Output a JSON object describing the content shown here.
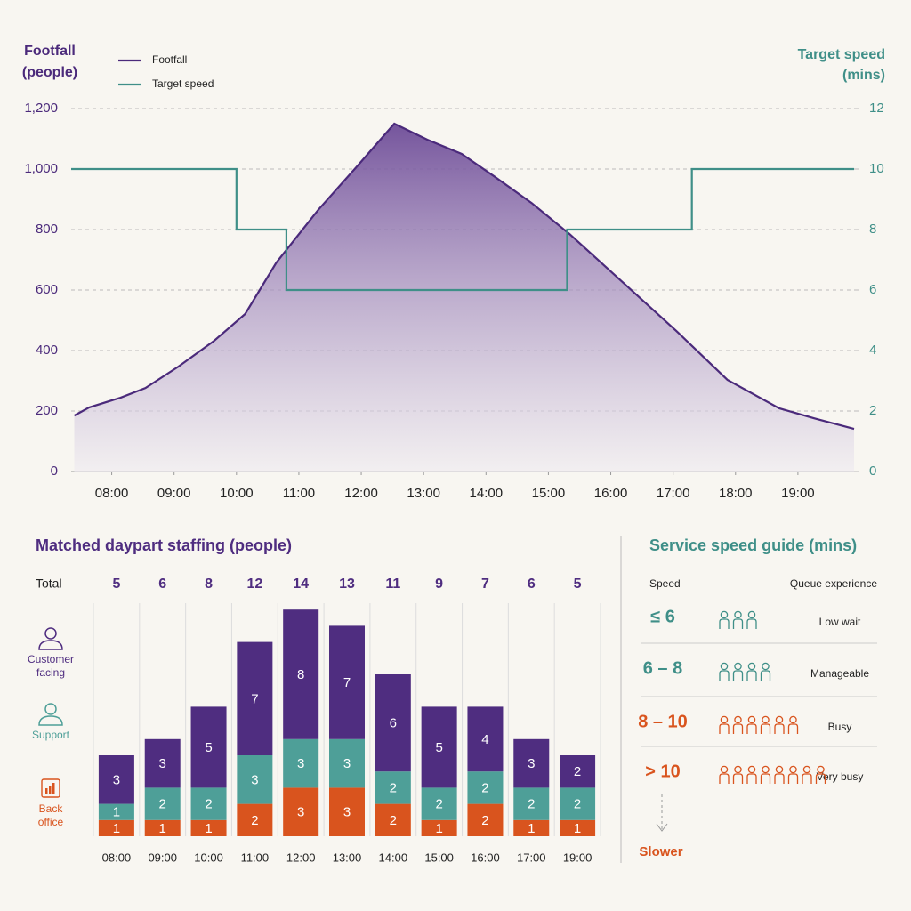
{
  "chart_data": [
    {
      "type": "line",
      "y_label": [
        "Footfall",
        "(people)"
      ],
      "y2_label": [
        "Target speed",
        "(mins)"
      ],
      "xlim": [
        7.35,
        19.9
      ],
      "xticks": [
        {
          "value": 8,
          "label": "08:00"
        },
        {
          "value": 9,
          "label": "09:00"
        },
        {
          "value": 10,
          "label": "10:00"
        },
        {
          "value": 11,
          "label": "11:00"
        },
        {
          "value": 12,
          "label": "12:00"
        },
        {
          "value": 13,
          "label": "13:00"
        },
        {
          "value": 14,
          "label": "14:00"
        },
        {
          "value": 15,
          "label": "15:00"
        },
        {
          "value": 16,
          "label": "16:00"
        },
        {
          "value": 17,
          "label": "17:00"
        },
        {
          "value": 18,
          "label": "18:00"
        },
        {
          "value": 19,
          "label": "19:00"
        }
      ],
      "ylim": [
        0,
        1200
      ],
      "yticks": [
        0,
        200,
        400,
        600,
        800,
        {
          "value": 1000,
          "label": "1,000"
        },
        {
          "value": 1200,
          "label": "1,200"
        }
      ],
      "y2lim": [
        0,
        12
      ],
      "y2ticks": [
        0,
        2,
        4,
        6,
        8,
        10,
        12
      ],
      "grid": true,
      "legend": "top-left",
      "series": [
        {
          "name": "Footfall",
          "color": "#4b2a7b",
          "fill": "gradient",
          "x": [
            7.4,
            7.64,
            8.14,
            8.54,
            9.07,
            9.64,
            10.14,
            10.64,
            11.31,
            11.92,
            12.53,
            13.06,
            13.61,
            14.13,
            14.73,
            15.34,
            16.19,
            17.05,
            17.87,
            18.7,
            19.26,
            19.9
          ],
          "values": [
            185,
            212,
            244,
            276,
            347,
            432,
            521,
            691,
            865,
            1006,
            1150,
            1097,
            1050,
            976,
            888,
            785,
            626,
            465,
            303,
            209,
            176,
            141
          ]
        },
        {
          "name": "Target speed",
          "color": "#3f8f88",
          "axis": "y2",
          "x": [
            7.35,
            10,
            10,
            10.8,
            10.8,
            15.3,
            15.3,
            17.3,
            17.3,
            19.9
          ],
          "values": [
            10,
            10,
            8,
            8,
            6,
            6,
            8,
            8,
            10,
            10
          ]
        }
      ]
    },
    {
      "type": "bar",
      "stacked": true,
      "title": "Matched daypart staffing (people)",
      "total_label": "Total",
      "categories": [
        "08:00",
        "09:00",
        "10:00",
        "11:00",
        "12:00",
        "13:00",
        "14:00",
        "15:00",
        "16:00",
        "17:00",
        "19:00"
      ],
      "totals": [
        5,
        6,
        8,
        12,
        14,
        13,
        11,
        9,
        7,
        6,
        5
      ],
      "series": [
        {
          "name": "Back office",
          "color": "#d9541e",
          "values": [
            1,
            1,
            1,
            2,
            3,
            3,
            2,
            1,
            2,
            1,
            1
          ]
        },
        {
          "name": "Support",
          "color": "#4e9f98",
          "values": [
            1,
            2,
            2,
            3,
            3,
            3,
            2,
            2,
            2,
            2,
            2
          ]
        },
        {
          "name": "Customer facing",
          "color": "#4f2d80",
          "values": [
            3,
            3,
            5,
            7,
            8,
            7,
            6,
            5,
            4,
            3,
            2
          ]
        }
      ]
    }
  ],
  "speed_guide": {
    "title": "Service speed guide (mins)",
    "headers": [
      "Speed",
      "Queue experience"
    ],
    "rows": [
      {
        "speed": "≤ 6",
        "experience": "Low wait",
        "icons": 3,
        "color": "#3f8f88"
      },
      {
        "speed": "6 – 8",
        "experience": "Manageable",
        "icons": 4,
        "color": "#3f8f88"
      },
      {
        "speed": "8 – 10",
        "experience": "Busy",
        "icons": 6,
        "color": "#d9541e"
      },
      {
        "speed": "> 10",
        "experience": "Very busy",
        "icons": 8,
        "color": "#d9541e"
      }
    ],
    "footer": "Slower"
  }
}
